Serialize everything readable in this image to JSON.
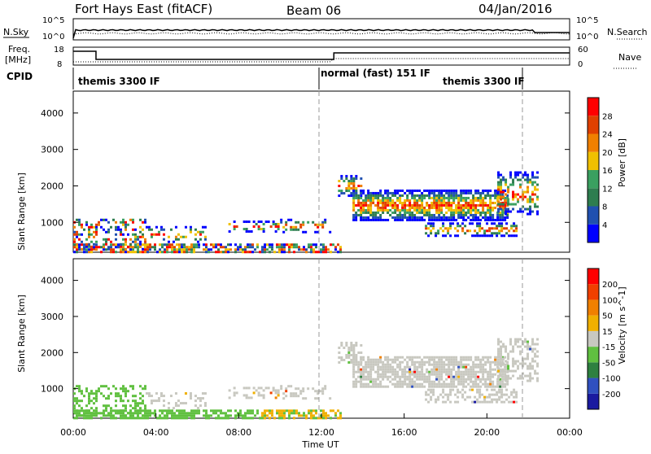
{
  "header": {
    "station": "Fort Hays East (fitACF)",
    "beam": "Beam 06",
    "date": "04/Jan/2016"
  },
  "top_strip": {
    "nsky_label": "N.Sky",
    "nsearch_label": "N.Search",
    "freq_label_1": "Freq.",
    "freq_label_2": "[MHz]",
    "nave_label": "Nave",
    "cpid_label": "CPID",
    "left_ticks_nsky": [
      "10^5",
      "10^0"
    ],
    "right_ticks_nsky": [
      "10^5",
      "10^0"
    ],
    "left_ticks_freq": [
      "18",
      "8"
    ],
    "right_ticks_nave": [
      "60",
      "0"
    ]
  },
  "cpid": {
    "segments": [
      "themis 3300 IF",
      "normal (fast) 151 IF",
      "themis 3300 IF"
    ]
  },
  "chart_data": [
    {
      "type": "heatmap",
      "title": "",
      "xlabel": "",
      "ylabel": "Slant Range [km]",
      "yticks": [
        "1000",
        "2000",
        "3000",
        "4000"
      ],
      "ylim": [
        180,
        4600
      ],
      "xlim": [
        0,
        24
      ],
      "colorbar": {
        "label": "Power [dB]",
        "ticks": [
          "4",
          "8",
          "12",
          "16",
          "20",
          "24",
          "28"
        ],
        "colors": [
          "#0000ff",
          "#2050b0",
          "#2e7d4f",
          "#3aa060",
          "#f0c000",
          "#f08000",
          "#e04000",
          "#ff0000"
        ]
      }
    },
    {
      "type": "heatmap",
      "title": "",
      "xlabel": "Time UT",
      "ylabel": "Slant Range [km]",
      "yticks": [
        "1000",
        "2000",
        "3000",
        "4000"
      ],
      "xticks": [
        "00:00",
        "04:00",
        "08:00",
        "12:00",
        "16:00",
        "20:00",
        "00:00"
      ],
      "ylim": [
        180,
        4600
      ],
      "xlim": [
        0,
        24
      ],
      "colorbar": {
        "label": "Velocity [m s^-1]",
        "ticks": [
          "200",
          "100",
          "50",
          "15",
          "-15",
          "-50",
          "-100",
          "-200"
        ],
        "colors": [
          "#1a1aa0",
          "#3050c0",
          "#2e8040",
          "#60c040",
          "#c8c8c0",
          "#f0b000",
          "#f08000",
          "#f04000",
          "#ff0000"
        ]
      }
    }
  ]
}
